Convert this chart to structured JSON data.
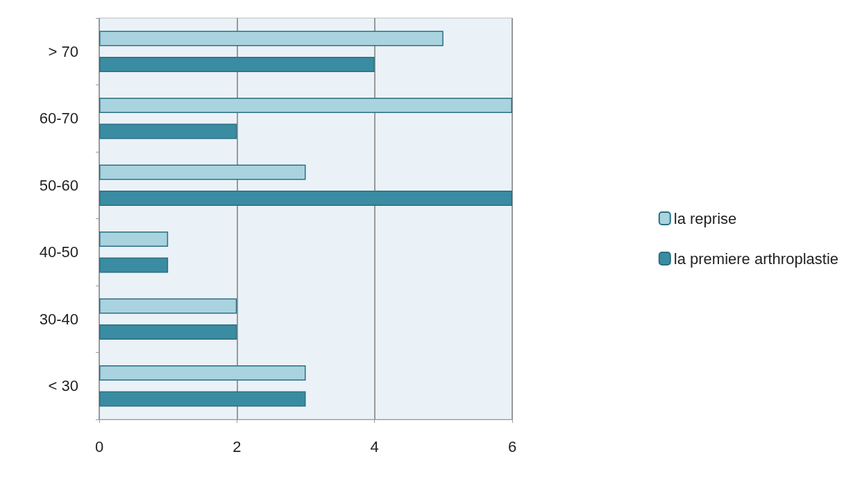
{
  "chart_data": {
    "type": "bar",
    "orientation": "horizontal",
    "categories": [
      "> 70",
      "60-70",
      "50-60",
      "40-50",
      "30-40",
      "< 30"
    ],
    "series": [
      {
        "name": "la reprise",
        "color": "#a9d3df",
        "values": [
          5,
          6,
          3,
          1,
          2,
          3
        ]
      },
      {
        "name": "la premiere arthroplastie",
        "color": "#3a8ca2",
        "values": [
          4,
          2,
          6,
          1,
          2,
          3
        ]
      }
    ],
    "xlim": [
      0,
      6
    ],
    "xticks": [
      0,
      2,
      4,
      6
    ],
    "grid": "x",
    "legend": "right"
  }
}
